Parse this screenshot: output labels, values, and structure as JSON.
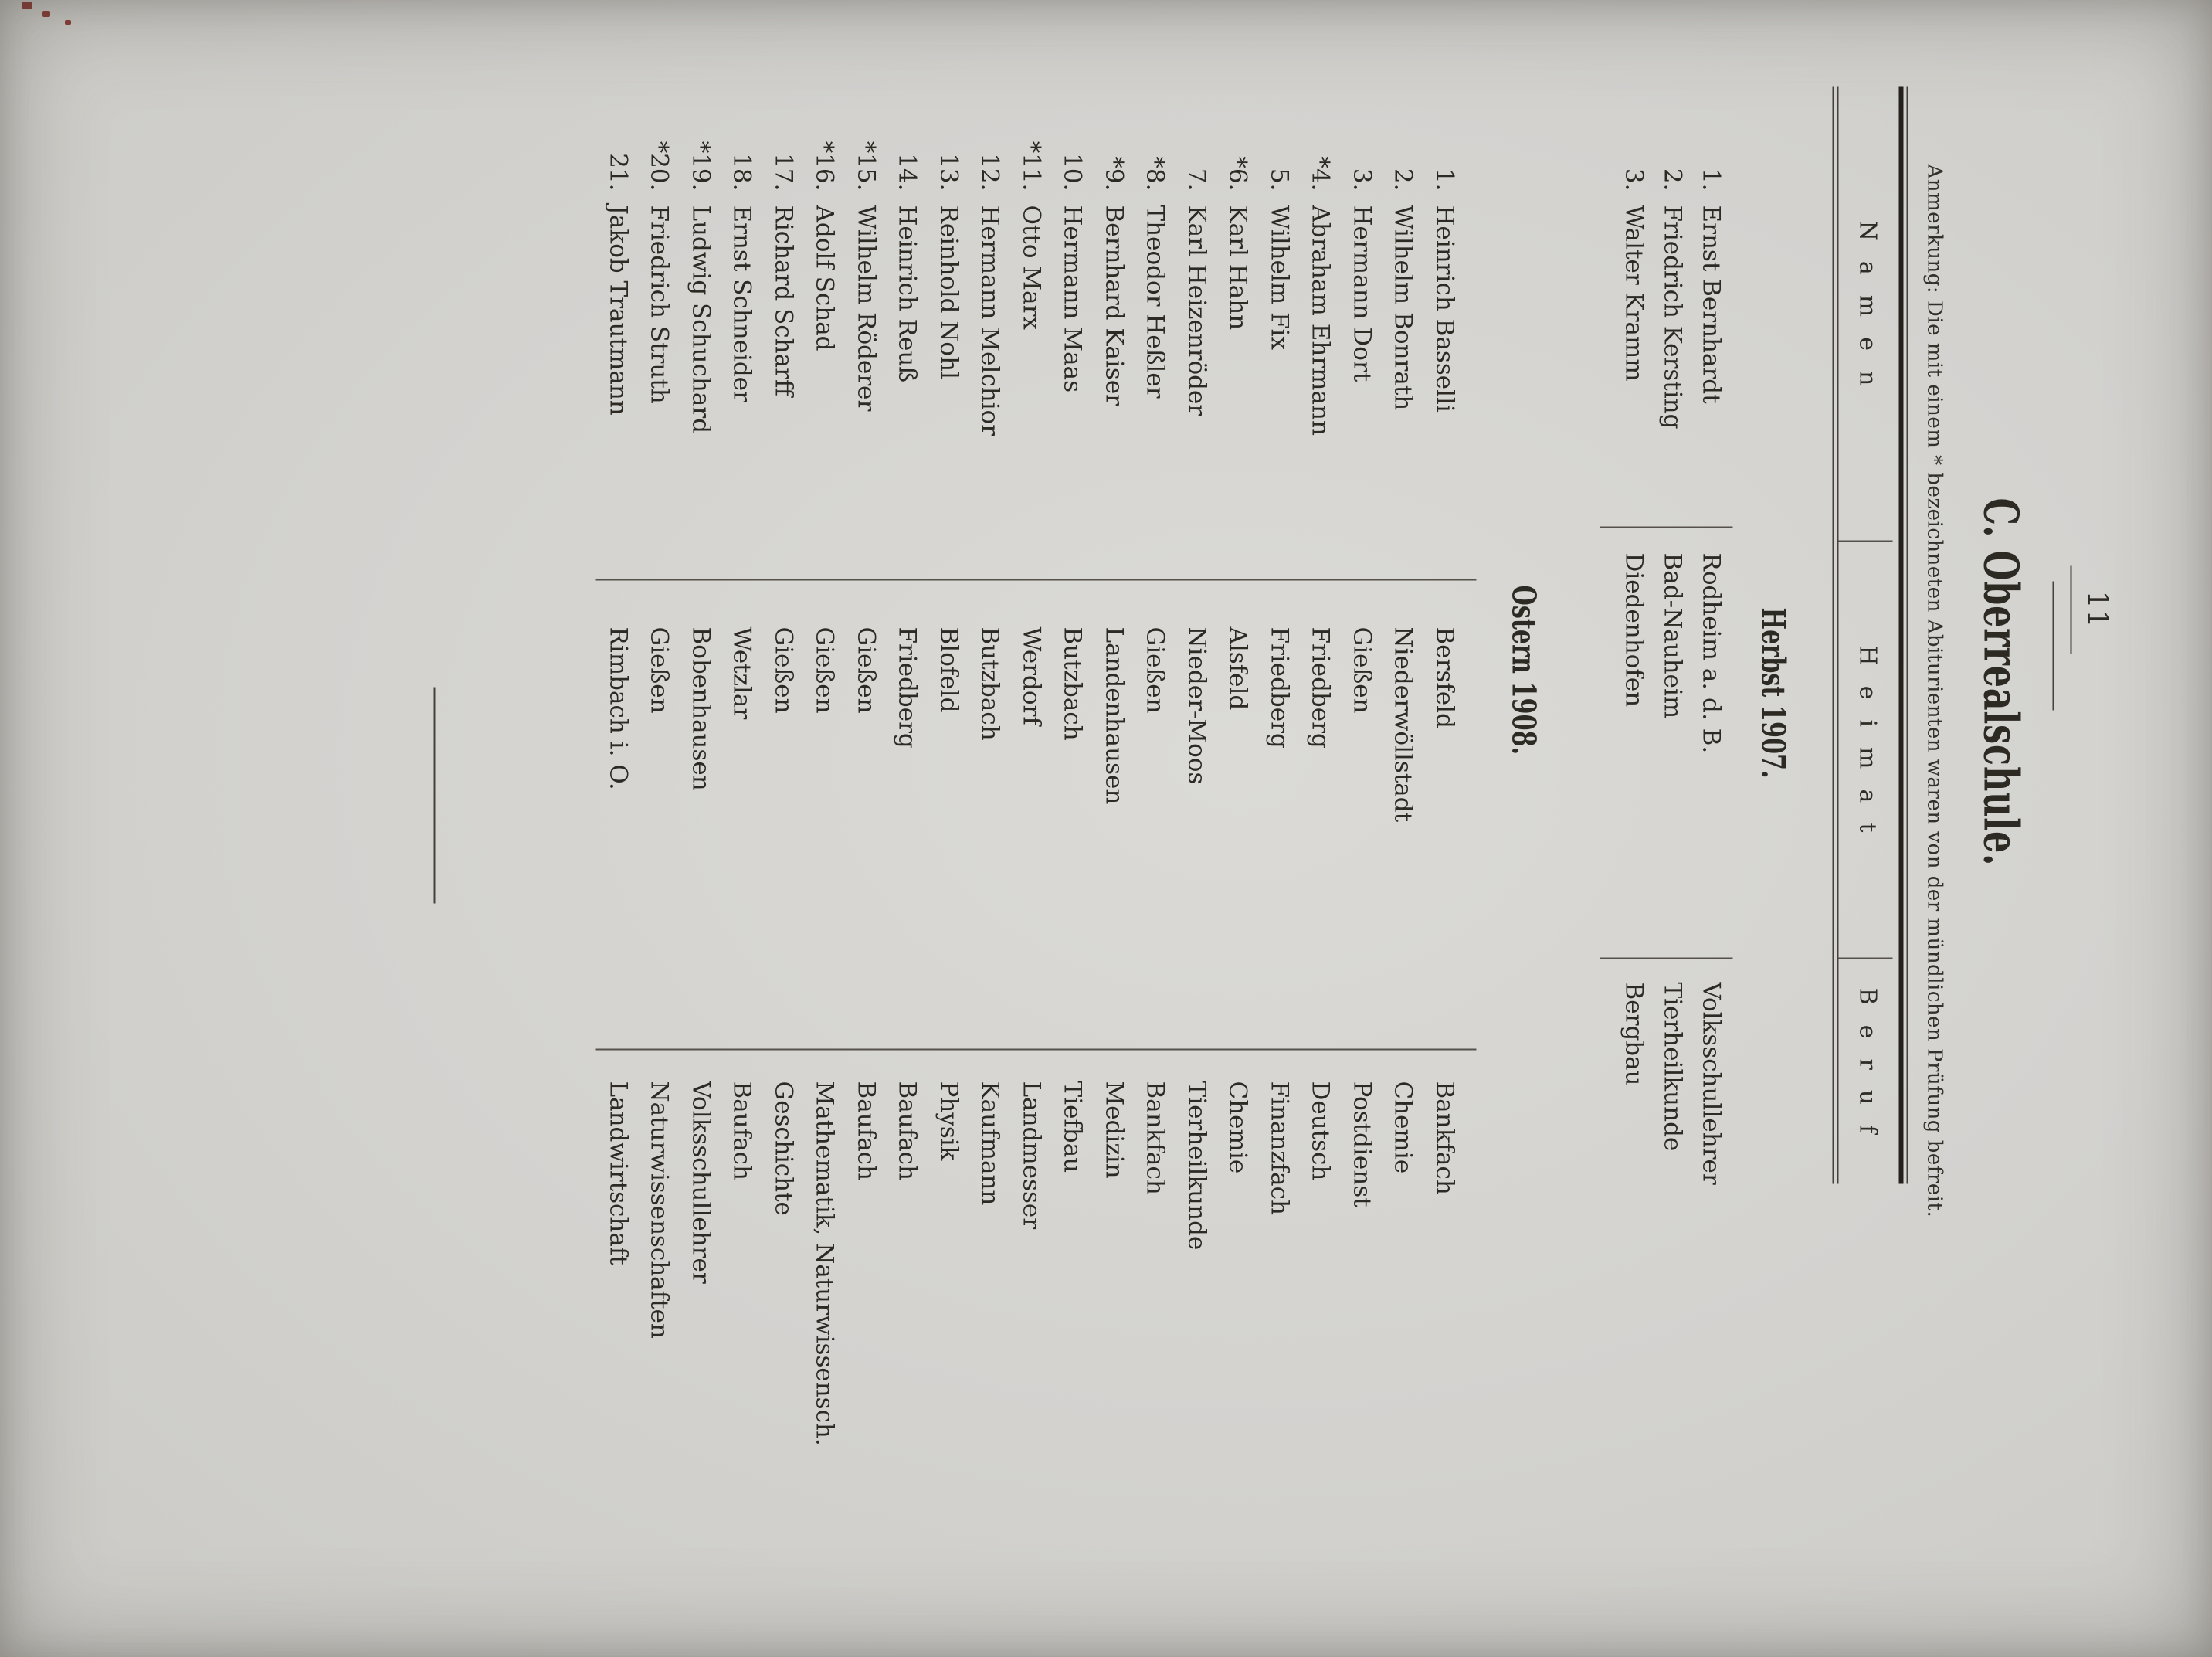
{
  "page_number": "11",
  "title": "C. Oberrealschule.",
  "note": "Anmerkung: Die mit einem * bezeichneten Abiturienten waren von der mündlichen Prüfung befreit.",
  "colors": {
    "paper": "#d3d2cf",
    "ink": "#2d2a24"
  },
  "table": {
    "headers": [
      "Namen",
      "Heimat",
      "Beruf"
    ],
    "sections": [
      {
        "heading": "Herbst 1907.",
        "rows": [
          {
            "num": "1.",
            "name": "Ernst Bernhardt",
            "heimat": "Rodheim a. d. B.",
            "beruf": "Volksschullehrer"
          },
          {
            "num": "2.",
            "name": "Friedrich Kersting",
            "heimat": "Bad-Nauheim",
            "beruf": "Tierheilkunde"
          },
          {
            "num": "3.",
            "name": "Walter Kramm",
            "heimat": "Diedenhofen",
            "beruf": "Bergbau"
          }
        ]
      },
      {
        "heading": "Ostern 1908.",
        "rows": [
          {
            "num": "1.",
            "name": "Heinrich Basselli",
            "heimat": "Bersfeld",
            "beruf": "Bankfach"
          },
          {
            "num": "2.",
            "name": "Wilhelm Bonrath",
            "heimat": "Niederwöllstadt",
            "beruf": "Chemie"
          },
          {
            "num": "3.",
            "name": "Hermann Dort",
            "heimat": "Gießen",
            "beruf": "Postdienst"
          },
          {
            "num": "*4.",
            "name": "Abraham Ehrmann",
            "heimat": "Friedberg",
            "beruf": "Deutsch"
          },
          {
            "num": "5.",
            "name": "Wilhelm Fix",
            "heimat": "Friedberg",
            "beruf": "Finanzfach"
          },
          {
            "num": "*6.",
            "name": "Karl Hahn",
            "heimat": "Alsfeld",
            "beruf": "Chemie"
          },
          {
            "num": "7.",
            "name": "Karl Heizenröder",
            "heimat": "Nieder-Moos",
            "beruf": "Tierheilkunde"
          },
          {
            "num": "*8.",
            "name": "Theodor Heßler",
            "heimat": "Gießen",
            "beruf": "Bankfach"
          },
          {
            "num": "*9.",
            "name": "Bernhard Kaiser",
            "heimat": "Landenhausen",
            "beruf": "Medizin"
          },
          {
            "num": "10.",
            "name": "Hermann Maas",
            "heimat": "Butzbach",
            "beruf": "Tiefbau"
          },
          {
            "num": "*11.",
            "name": "Otto Marx",
            "heimat": "Werdorf",
            "beruf": "Landmesser"
          },
          {
            "num": "12.",
            "name": "Hermann Melchior",
            "heimat": "Butzbach",
            "beruf": "Kaufmann"
          },
          {
            "num": "13.",
            "name": "Reinhold Nohl",
            "heimat": "Blofeld",
            "beruf": "Physik"
          },
          {
            "num": "14.",
            "name": "Heinrich Reuß",
            "heimat": "Friedberg",
            "beruf": "Baufach"
          },
          {
            "num": "*15.",
            "name": "Wilhelm Röderer",
            "heimat": "Gießen",
            "beruf": "Baufach"
          },
          {
            "num": "*16.",
            "name": "Adolf Schad",
            "heimat": "Gießen",
            "beruf": "Mathematik, Naturwissensch."
          },
          {
            "num": "17.",
            "name": "Richard Scharff",
            "heimat": "Gießen",
            "beruf": "Geschichte"
          },
          {
            "num": "18.",
            "name": "Ernst Schneider",
            "heimat": "Wetzlar",
            "beruf": "Baufach"
          },
          {
            "num": "*19.",
            "name": "Ludwig Schuchard",
            "heimat": "Bobenhausen",
            "beruf": "Volksschullehrer"
          },
          {
            "num": "*20.",
            "name": "Friedrich Struth",
            "heimat": "Gießen",
            "beruf": "Naturwissenschaften"
          },
          {
            "num": "21.",
            "name": "Jakob Trautmann",
            "heimat": "Rimbach i. O.",
            "beruf": "Landwirtschaft"
          }
        ]
      }
    ]
  }
}
